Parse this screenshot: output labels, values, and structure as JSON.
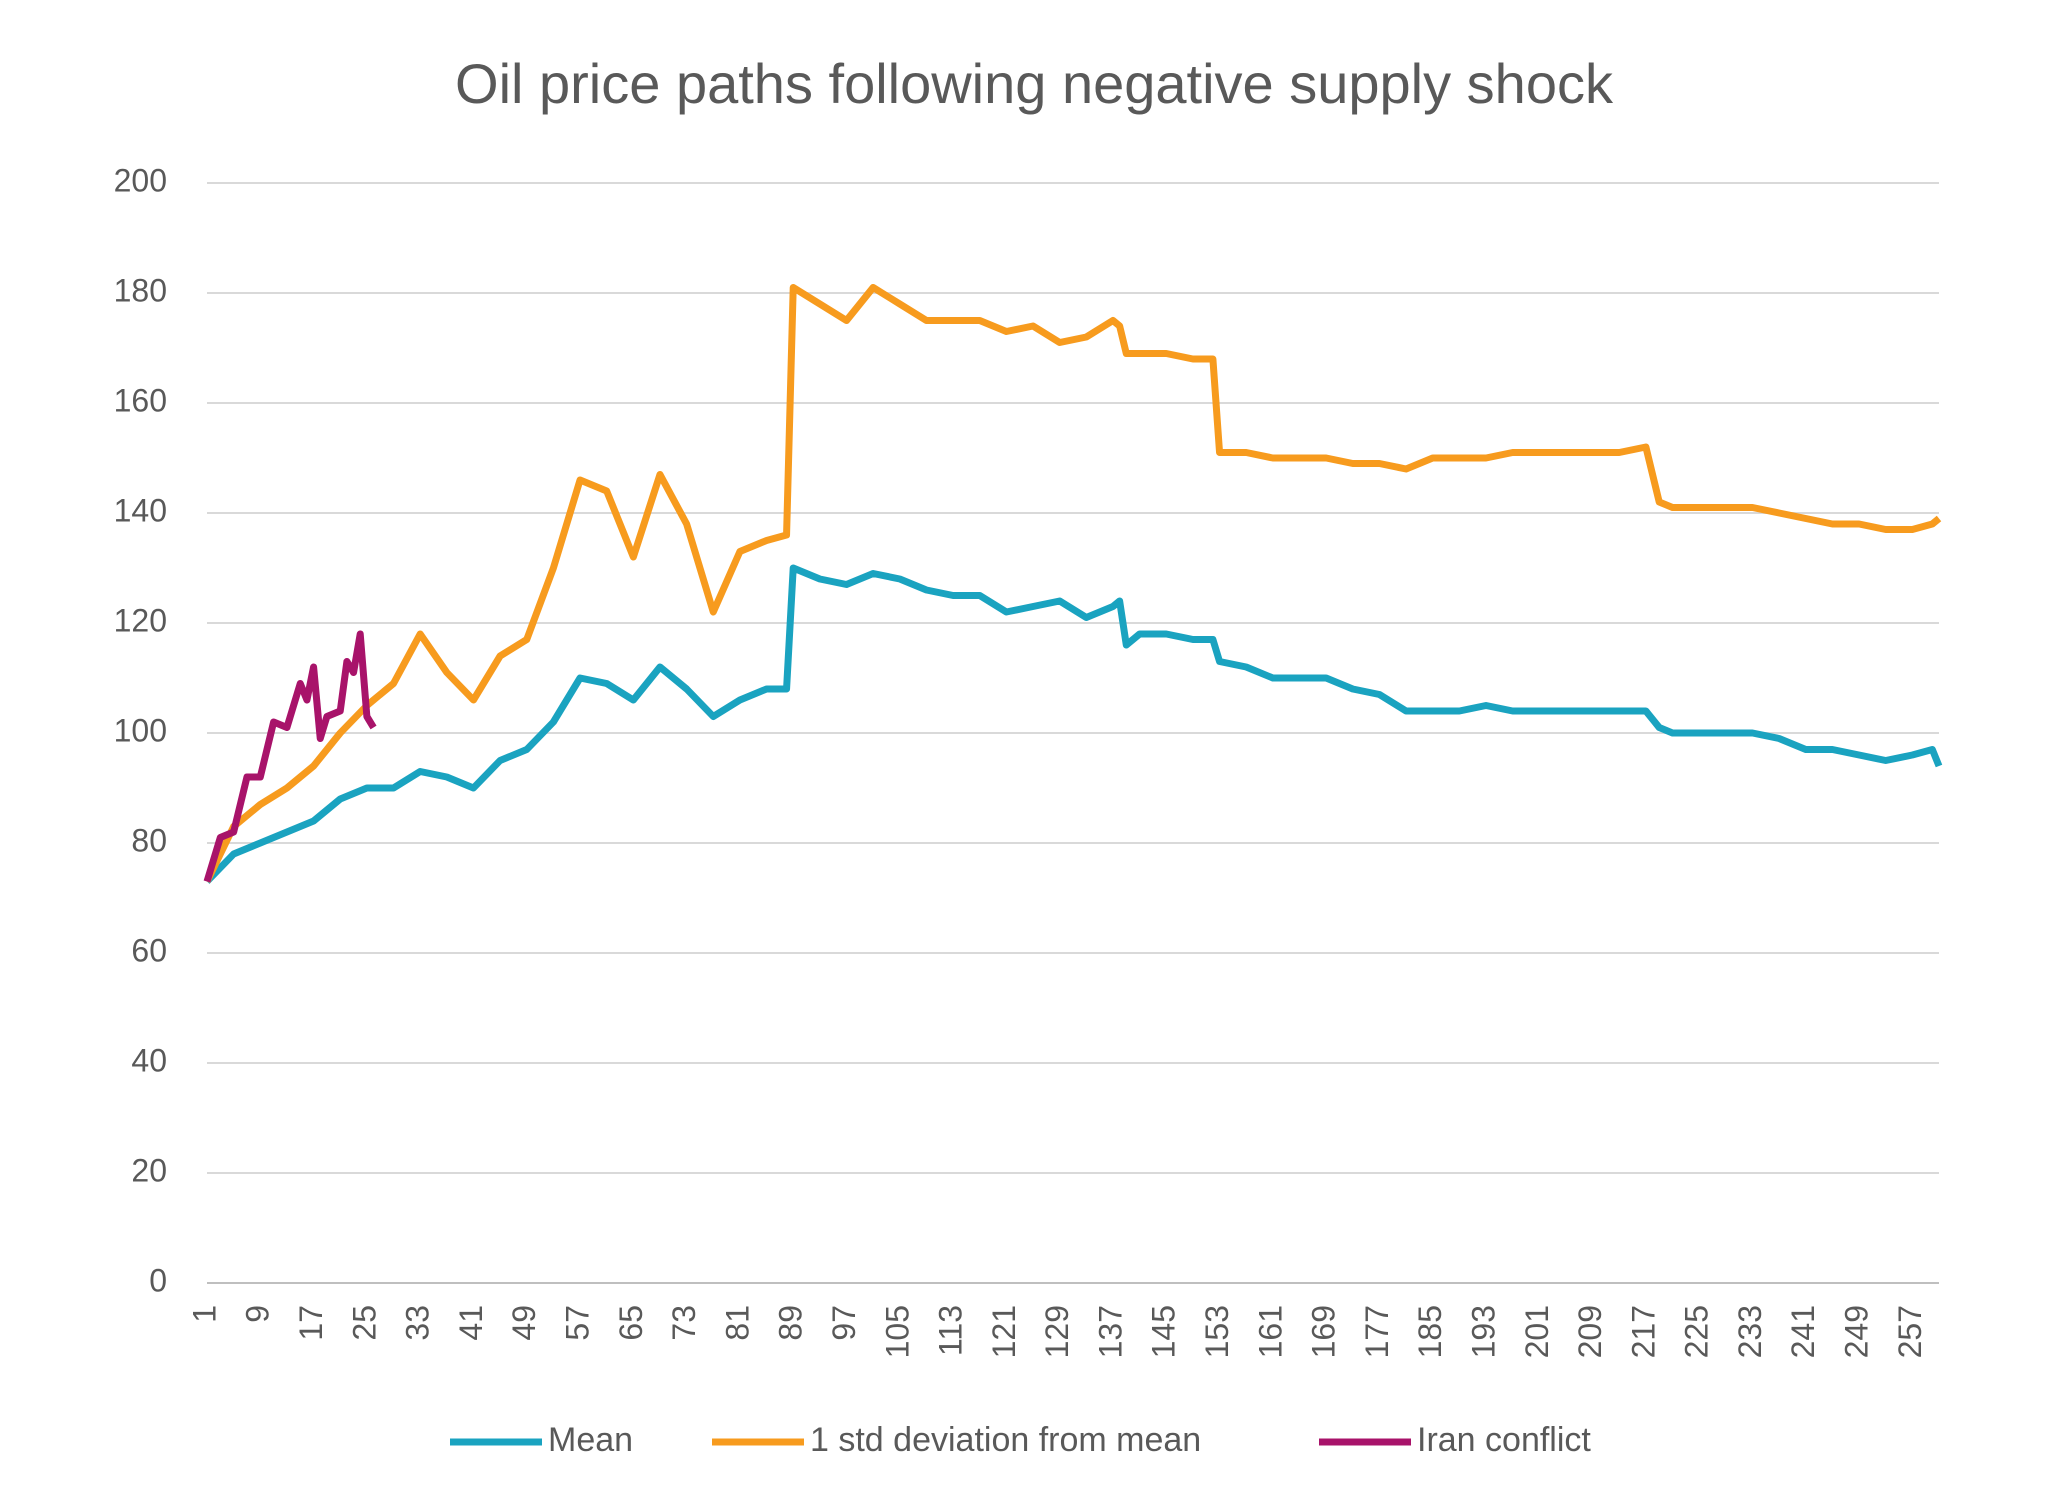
{
  "chart_data": {
    "type": "line",
    "title": "Oil price paths following negative supply shock",
    "x": [
      1,
      5,
      9,
      13,
      17,
      21,
      25,
      29,
      33,
      37,
      41,
      45,
      49,
      53,
      57,
      61,
      65,
      69,
      73,
      77,
      81,
      85,
      88,
      89,
      93,
      97,
      101,
      105,
      109,
      113,
      117,
      121,
      125,
      129,
      133,
      137,
      138,
      139,
      141,
      145,
      149,
      152,
      153,
      157,
      161,
      165,
      169,
      173,
      177,
      181,
      185,
      189,
      193,
      197,
      201,
      205,
      209,
      213,
      217,
      219,
      221,
      225,
      229,
      233,
      237,
      241,
      245,
      249,
      253,
      257,
      260,
      261
    ],
    "series": [
      {
        "name": "Mean",
        "color": "#1aa3c0",
        "values": [
          73,
          78,
          80,
          82,
          84,
          88,
          90,
          90,
          93,
          92,
          90,
          95,
          97,
          102,
          110,
          109,
          106,
          112,
          108,
          103,
          106,
          108,
          108,
          130,
          128,
          127,
          129,
          128,
          126,
          125,
          125,
          122,
          123,
          124,
          121,
          123,
          124,
          116,
          118,
          118,
          117,
          117,
          113,
          112,
          110,
          110,
          110,
          108,
          107,
          104,
          104,
          104,
          105,
          104,
          104,
          104,
          104,
          104,
          104,
          101,
          100,
          100,
          100,
          100,
          99,
          97,
          97,
          96,
          95,
          96,
          97,
          94
        ]
      },
      {
        "name": "1 std deviation from mean",
        "color": "#f79b1e",
        "values": [
          73,
          83,
          87,
          90,
          94,
          100,
          105,
          109,
          118,
          111,
          106,
          114,
          117,
          130,
          146,
          144,
          132,
          147,
          138,
          122,
          133,
          135,
          136,
          181,
          178,
          175,
          181,
          178,
          175,
          175,
          175,
          173,
          174,
          171,
          172,
          175,
          174,
          169,
          169,
          169,
          168,
          168,
          151,
          151,
          150,
          150,
          150,
          149,
          149,
          148,
          150,
          150,
          150,
          151,
          151,
          151,
          151,
          151,
          152,
          142,
          141,
          141,
          141,
          141,
          140,
          139,
          138,
          138,
          137,
          137,
          138,
          139
        ]
      },
      {
        "name": "Iran conflict",
        "color": "#a8136a",
        "x": [
          1,
          3,
          5,
          7,
          9,
          11,
          13,
          15,
          16,
          17,
          18,
          19,
          21,
          22,
          23,
          24,
          25,
          26
        ],
        "values": [
          73,
          81,
          82,
          92,
          92,
          102,
          101,
          109,
          106,
          112,
          99,
          103,
          104,
          113,
          111,
          118,
          103,
          101
        ]
      }
    ],
    "xlim": [
      1,
      261
    ],
    "xticks": [
      1,
      9,
      17,
      25,
      33,
      41,
      49,
      57,
      65,
      73,
      81,
      89,
      97,
      105,
      113,
      121,
      129,
      137,
      145,
      153,
      161,
      169,
      177,
      185,
      193,
      201,
      209,
      217,
      225,
      233,
      241,
      249,
      257
    ],
    "ylim": [
      0,
      200
    ],
    "yticks": [
      0,
      20,
      40,
      60,
      80,
      100,
      120,
      140,
      160,
      180,
      200
    ],
    "grid": true,
    "legend": "bottom"
  }
}
